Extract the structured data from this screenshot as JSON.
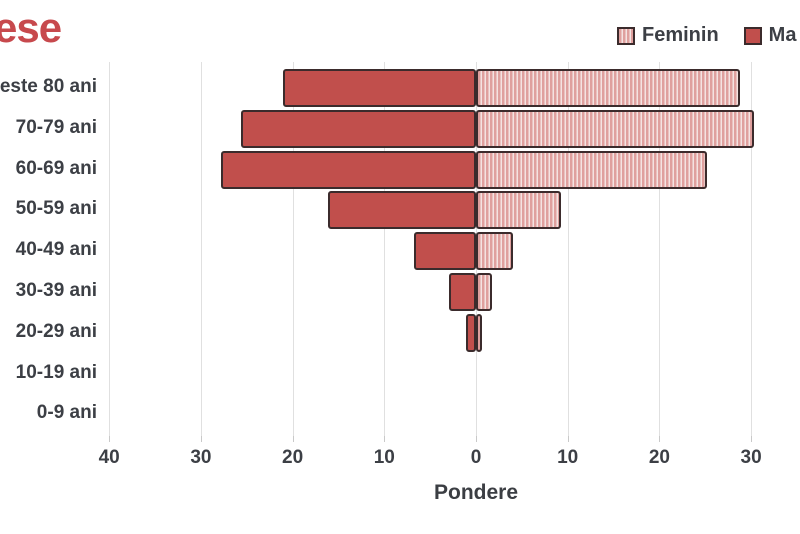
{
  "title": {
    "text": "ese"
  },
  "legend": {
    "items": [
      {
        "label": "Feminin",
        "swatch": "striped"
      },
      {
        "label": "Ma",
        "swatch": "solid"
      }
    ]
  },
  "chart_data": {
    "type": "bar",
    "subtype": "population_pyramid",
    "orientation": "horizontal",
    "xlabel": "Pondere",
    "grid": true,
    "legend_position": "top-right",
    "categories": [
      "este 80 ani",
      "70-79 ani",
      "60-69 ani",
      "50-59 ani",
      "40-49 ani",
      "30-39 ani",
      "20-29 ani",
      "10-19 ani",
      "0-9 ani"
    ],
    "series": [
      {
        "name": "Ma",
        "side": "left",
        "pattern": "solid",
        "values": [
          21.1,
          25.6,
          27.8,
          16.1,
          6.8,
          2.9,
          1.1,
          0,
          0
        ]
      },
      {
        "name": "Feminin",
        "side": "right",
        "pattern": "striped",
        "values": [
          28.8,
          30.3,
          25.2,
          9.3,
          4.0,
          1.7,
          0.6,
          0,
          0
        ]
      }
    ],
    "x_ticks": [
      {
        "label": "40",
        "value": -40
      },
      {
        "label": "30",
        "value": -30
      },
      {
        "label": "20",
        "value": -20
      },
      {
        "label": "10",
        "value": -10
      },
      {
        "label": "0",
        "value": 0
      },
      {
        "label": "10",
        "value": 10
      },
      {
        "label": "20",
        "value": 20
      },
      {
        "label": "30",
        "value": 30
      }
    ],
    "axis_unit": "percent"
  },
  "colors": {
    "title": "#c7494d",
    "bar_masculin": "#c14f4c",
    "bar_border": "#3b2b2c",
    "stripe_dark": "#dfa09e",
    "stripe_light": "#f4e3e2",
    "text": "#3c3f45",
    "gridline": "#e0e0e0"
  }
}
